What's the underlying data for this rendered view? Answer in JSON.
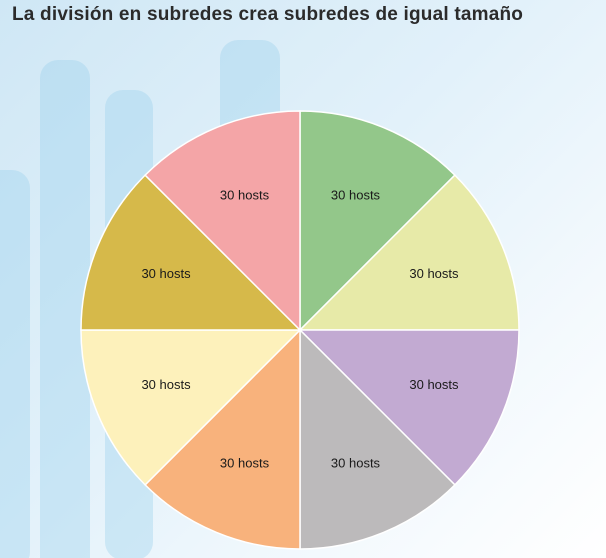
{
  "chart_data": {
    "type": "pie",
    "title": "La división en subredes crea subredes de igual tamaño",
    "categories": [
      "30 hosts",
      "30 hosts",
      "30 hosts",
      "30 hosts",
      "30 hosts",
      "30 hosts",
      "30 hosts",
      "30 hosts"
    ],
    "values": [
      30,
      30,
      30,
      30,
      30,
      30,
      30,
      30
    ],
    "colors": [
      "#93c78a",
      "#e7eaa8",
      "#c2aad2",
      "#bcbabb",
      "#f8b27c",
      "#fdf1bb",
      "#d6b94a",
      "#f4a5a7"
    ],
    "start_angle_deg": 0,
    "direction": "clockwise-from-top",
    "legend": "none"
  }
}
